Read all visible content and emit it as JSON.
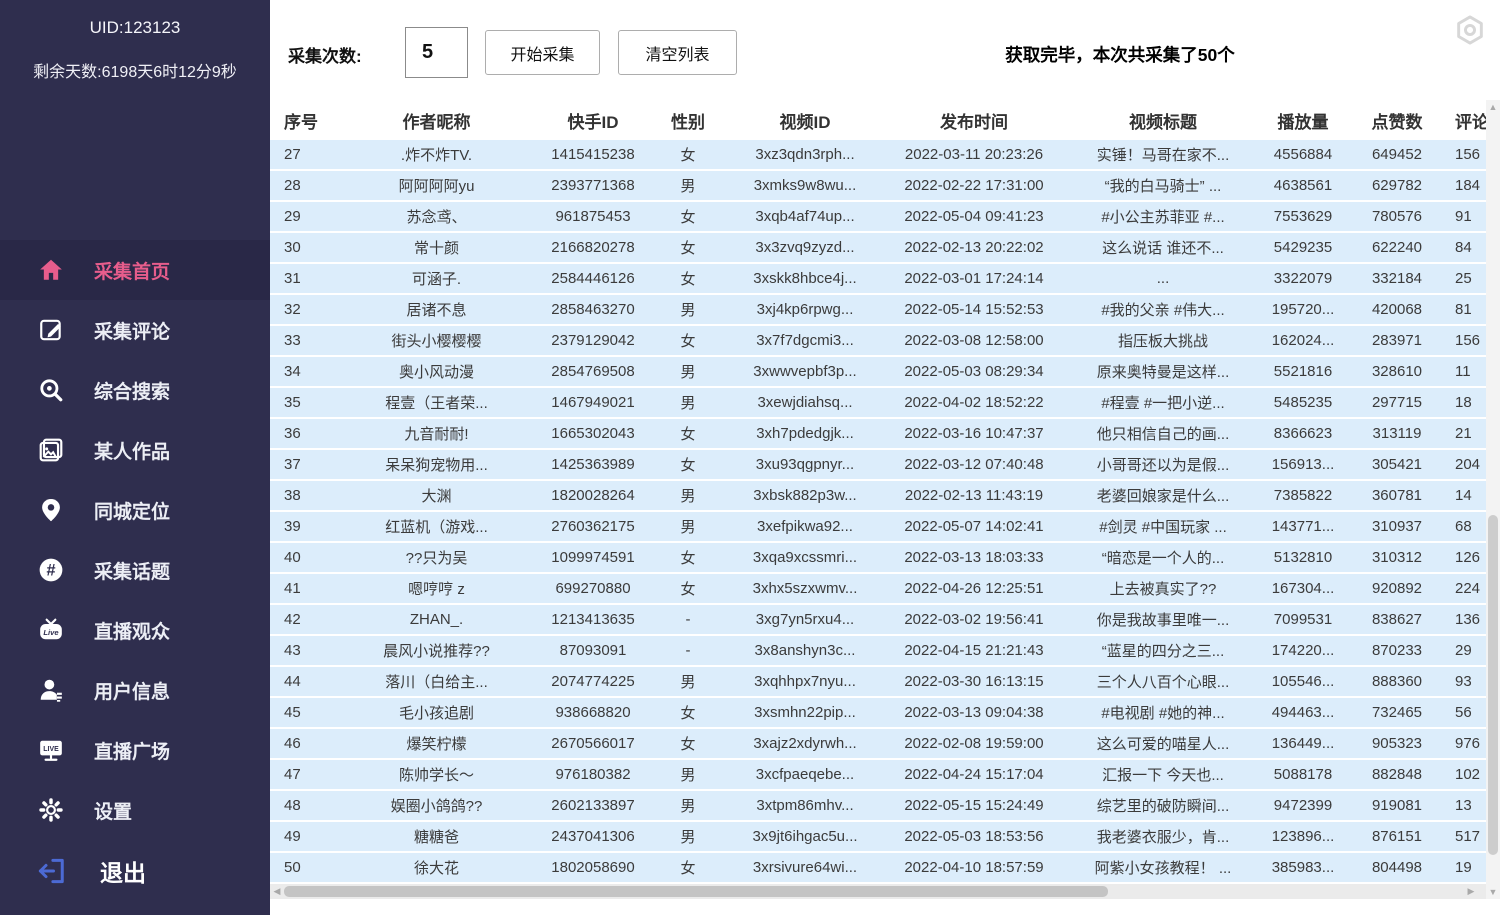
{
  "sidebar": {
    "uid": "UID:123123",
    "remaining": "剩余天数:6198天6时12分9秒",
    "items": [
      {
        "label": "采集首页",
        "icon": "home-icon",
        "active": true
      },
      {
        "label": "采集评论",
        "icon": "edit-icon",
        "active": false
      },
      {
        "label": "综合搜索",
        "icon": "search-icon",
        "active": false
      },
      {
        "label": "某人作品",
        "icon": "works-icon",
        "active": false
      },
      {
        "label": "同城定位",
        "icon": "location-icon",
        "active": false
      },
      {
        "label": "采集话题",
        "icon": "hashtag-icon",
        "active": false
      },
      {
        "label": "直播观众",
        "icon": "live-tv-icon",
        "active": false
      },
      {
        "label": "用户信息",
        "icon": "user-icon",
        "active": false
      },
      {
        "label": "直播广场",
        "icon": "live-screen-icon",
        "active": false
      },
      {
        "label": "设置",
        "icon": "gear-icon",
        "active": false
      }
    ],
    "exit_label": "退出"
  },
  "toolbar": {
    "count_label": "采集次数:",
    "count_value": "5",
    "start_button": "开始采集",
    "clear_button": "清空列表",
    "status": "获取完毕，本次共采集了50个"
  },
  "table": {
    "headers": [
      "序号",
      "作者昵称",
      "快手ID",
      "性别",
      "视频ID",
      "发布时间",
      "视频标题",
      "播放量",
      "点赞数",
      "评论数"
    ],
    "rows": [
      [
        "27",
        ".炸不炸TV.",
        "1415415238",
        "女",
        "3xz3qdn3rph...",
        "2022-03-11 20:23:26",
        "实锤！马哥在家不...",
        "4556884",
        "649452",
        "156"
      ],
      [
        "28",
        "阿阿阿阿yu",
        "2393771368",
        "男",
        "3xmks9w8wu...",
        "2022-02-22 17:31:00",
        "“我的白马骑士” ...",
        "4638561",
        "629782",
        "184"
      ],
      [
        "29",
        "苏念鸢、",
        "961875453",
        "女",
        "3xqb4af74up...",
        "2022-05-04 09:41:23",
        "#小公主苏菲亚 #...",
        "7553629",
        "780576",
        "91"
      ],
      [
        "30",
        "常十颜",
        "2166820278",
        "女",
        "3x3zvq9zyzd...",
        "2022-02-13 20:22:02",
        "这么说话 谁还不...",
        "5429235",
        "622240",
        "84"
      ],
      [
        "31",
        "可涵子.",
        "2584446126",
        "女",
        "3xskk8hbce4j...",
        "2022-03-01 17:24:14",
        "...",
        "3322079",
        "332184",
        "25"
      ],
      [
        "32",
        "居诸不息",
        "2858463270",
        "男",
        "3xj4kp6rpwg...",
        "2022-05-14 15:52:53",
        "#我的父亲  #伟大...",
        "195720...",
        "420068",
        "81"
      ],
      [
        "33",
        "街头小樱樱樱",
        "2379129042",
        "女",
        "3x7f7dgcmi3...",
        "2022-03-08 12:58:00",
        "指压板大挑战",
        "162024...",
        "283971",
        "156"
      ],
      [
        "34",
        "奥小风动漫",
        "2854769508",
        "男",
        "3xwwvepbf3p...",
        "2022-05-03 08:29:34",
        "原来奥特曼是这样...",
        "5521816",
        "328610",
        "11"
      ],
      [
        "35",
        "程壹（王者荣...",
        "1467949021",
        "男",
        "3xewjdiahsq...",
        "2022-04-02 18:52:22",
        "#程壹 #一把小逆...",
        "5485235",
        "297715",
        "18"
      ],
      [
        "36",
        "九音耐耐!",
        "1665302043",
        "女",
        "3xh7pdedgjk...",
        "2022-03-16 10:47:37",
        "他只相信自己的画...",
        "8366623",
        "313119",
        "21"
      ],
      [
        "37",
        "呆呆狗宠物用...",
        "1425363989",
        "女",
        "3xu93qgpnyr...",
        "2022-03-12 07:40:48",
        "小哥哥还以为是假...",
        "156913...",
        "305421",
        "204"
      ],
      [
        "38",
        "大渊",
        "1820028264",
        "男",
        "3xbsk882p3w...",
        "2022-02-13 11:43:19",
        "老婆回娘家是什么...",
        "7385822",
        "360781",
        "14"
      ],
      [
        "39",
        "红蓝机（游戏...",
        "2760362175",
        "男",
        "3xefpikwa92...",
        "2022-05-07 14:02:41",
        "#剑灵 #中国玩家 ...",
        "143771...",
        "310937",
        "68"
      ],
      [
        "40",
        "??只为吴",
        "1099974591",
        "女",
        "3xqa9xcssmri...",
        "2022-03-13 18:03:33",
        "“暗恋是一个人的...",
        "5132810",
        "310312",
        "126"
      ],
      [
        "41",
        "嗯哼哼 z",
        "699270880",
        "女",
        "3xhx5szxwmv...",
        "2022-04-26 12:25:51",
        "上去被真实了??",
        "167304...",
        "920892",
        "224"
      ],
      [
        "42",
        "ZHAN_.",
        "1213413635",
        "-",
        "3xg7yn5rxu4...",
        "2022-03-02 19:56:41",
        "你是我故事里唯一...",
        "7099531",
        "838627",
        "136"
      ],
      [
        "43",
        "晨风小说推荐??",
        "87093091",
        "-",
        "3x8anshyn3c...",
        "2022-04-15 21:21:43",
        "“蓝星的四分之三...",
        "174220...",
        "870233",
        "29"
      ],
      [
        "44",
        "落川（白给主...",
        "2074774225",
        "男",
        "3xqhhpx7nyu...",
        "2022-03-30 16:13:15",
        "三个人八百个心眼...",
        "105546...",
        "888360",
        "93"
      ],
      [
        "45",
        "毛小孩追剧",
        "938668820",
        "女",
        "3xsmhn22pip...",
        "2022-03-13 09:04:38",
        "#电视剧 #她的神...",
        "494463...",
        "732465",
        "56"
      ],
      [
        "46",
        "爆笑柠檬",
        "2670566017",
        "女",
        "3xajz2xdyrwh...",
        "2022-02-08 19:59:00",
        "这么可爱的喵星人...",
        "136449...",
        "905323",
        "976"
      ],
      [
        "47",
        "陈帅学长～",
        "976180382",
        "男",
        "3xcfpaeqebe...",
        "2022-04-24 15:17:04",
        "汇报一下 今天也...",
        "5088178",
        "882848",
        "102"
      ],
      [
        "48",
        "娱圈小鸽鸽??",
        "2602133897",
        "男",
        "3xtpm86mhv...",
        "2022-05-15 15:24:49",
        "综艺里的破防瞬间...",
        "9472399",
        "919081",
        "13"
      ],
      [
        "49",
        "糖糖爸",
        "2437041306",
        "男",
        "3x9jt6ihgac5u...",
        "2022-05-03 18:53:56",
        "我老婆衣服少，肯...",
        "123896...",
        "876151",
        "517"
      ],
      [
        "50",
        "徐大花",
        "1802058690",
        "女",
        "3xrsivure64wi...",
        "2022-04-10 18:57:59",
        "阿紫小女孩教程！ ...",
        "385983...",
        "804498",
        "19"
      ]
    ]
  },
  "colors": {
    "sidebar_bg": "#2f2e4e",
    "sidebar_active_bg": "#292847",
    "accent_pink": "#e75d8c",
    "exit_blue": "#4c6ad4",
    "row_blue": "#dcedfb"
  }
}
